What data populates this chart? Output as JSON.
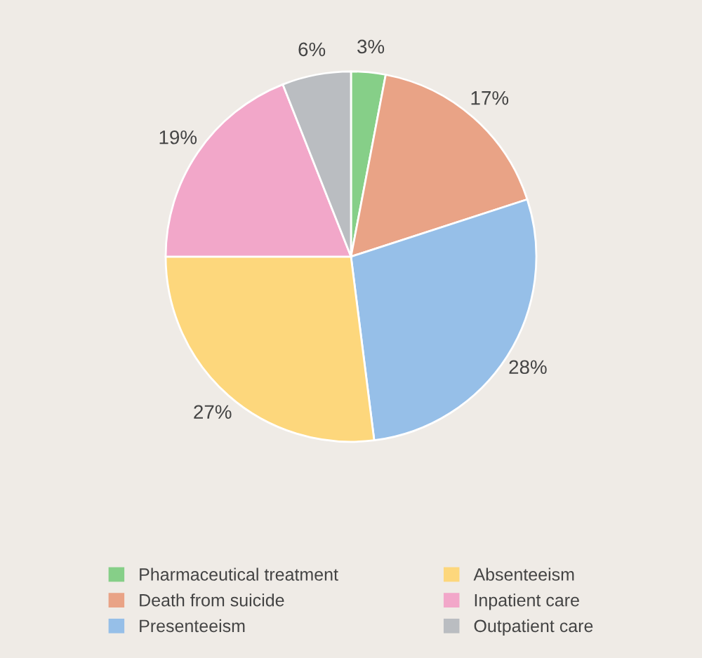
{
  "chart_data": {
    "type": "pie",
    "categories": [
      "Pharmaceutical treatment",
      "Death from suicide",
      "Presenteeism",
      "Absenteeism",
      "Inpatient care",
      "Outpatient care"
    ],
    "values": [
      3,
      17,
      28,
      27,
      19,
      6
    ],
    "value_labels": [
      "3%",
      "17%",
      "28%",
      "27%",
      "19%",
      "6%"
    ],
    "colors": [
      "#86cf88",
      "#e9a386",
      "#96bfe8",
      "#fdd77c",
      "#f2a7c9",
      "#babdc1"
    ],
    "legend": "bottom"
  }
}
